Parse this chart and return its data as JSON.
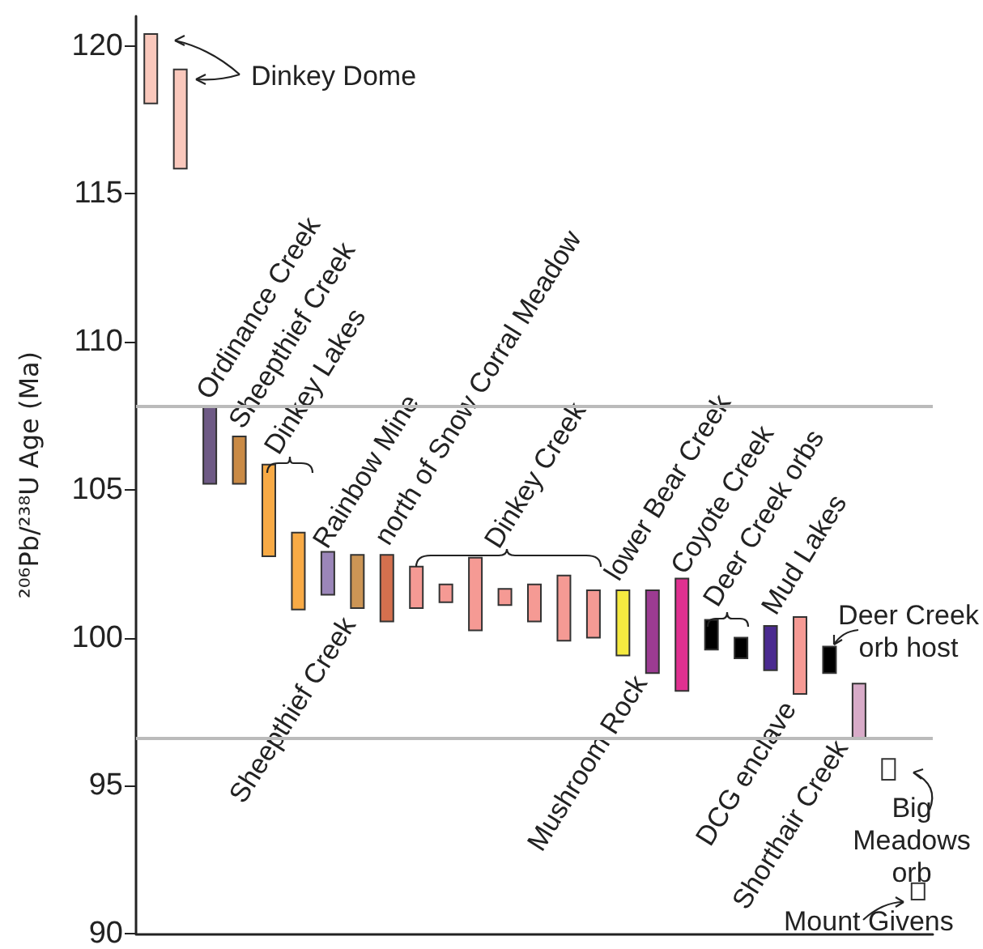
{
  "chart_data": {
    "type": "bar",
    "ylabel": "²⁰⁶Pb/²³⁸U Age (Ma)",
    "categories": [
      null,
      null,
      null,
      null,
      null,
      null,
      null,
      null,
      null,
      null,
      null,
      null,
      null,
      null,
      null,
      null,
      null,
      null,
      null,
      null,
      null,
      null,
      null,
      null,
      null,
      null,
      null
    ],
    "base": [
      118.05,
      115.85,
      105.2,
      105.2,
      102.75,
      100.95,
      101.45,
      101.0,
      100.55,
      101.0,
      101.2,
      100.25,
      101.1,
      100.55,
      99.9,
      100.0,
      99.4,
      98.8,
      98.2,
      99.6,
      99.3,
      98.9,
      98.1,
      98.8,
      96.6,
      95.2,
      91.15
    ],
    "values": [
      2.35,
      3.35,
      2.6,
      1.6,
      3.1,
      2.6,
      1.45,
      1.8,
      2.25,
      1.4,
      0.6,
      2.45,
      0.55,
      1.25,
      2.2,
      1.6,
      2.2,
      2.8,
      3.8,
      1.0,
      0.7,
      1.5,
      2.6,
      0.9,
      1.85,
      0.7,
      0.55
    ],
    "colors": [
      "#fac8bc",
      "#fac8bc",
      "#6e5a85",
      "#c98a45",
      "#f8aa45",
      "#f8aa45",
      "#9b86b9",
      "#cc9555",
      "#d4704e",
      "#f59a94",
      "#f59a94",
      "#f59a94",
      "#f59a94",
      "#f59a94",
      "#f59a94",
      "#f59a94",
      "#f5ea40",
      "#9c3b92",
      "#e03090",
      "#000000",
      "#000000",
      "#4a2a90",
      "#f59a94",
      "#000000",
      "#d8abc8",
      "#ffffff",
      "#ffffff"
    ],
    "ylim": [
      90,
      121
    ],
    "yticks": [
      90,
      95,
      100,
      105,
      110,
      115,
      120
    ],
    "tick_labels": "y",
    "grid": false,
    "ref_lines": [
      {
        "axis": "y",
        "value": 107.8,
        "color": "#bbbbbb"
      },
      {
        "axis": "y",
        "value": 96.6,
        "color": "#bbbbbb"
      }
    ],
    "annotations": [
      "Dinkey Dome",
      "Ordinance Creek",
      "Sheepthief Creek",
      "Dinkey Lakes",
      "Rainbow Mine",
      "north of Snow Corral Meadow",
      "Dinkey Creek",
      "lower Bear Creek",
      "Coyote Creek",
      "Deer Creek orbs",
      "Mud Lakes",
      "Deer Creek\norb host",
      "Sheepthief Creek",
      "Mushroom Rock",
      "DCG enclave",
      "Shorthair Creek",
      "Big\nMeadows\norb",
      "Mount Givens"
    ]
  }
}
